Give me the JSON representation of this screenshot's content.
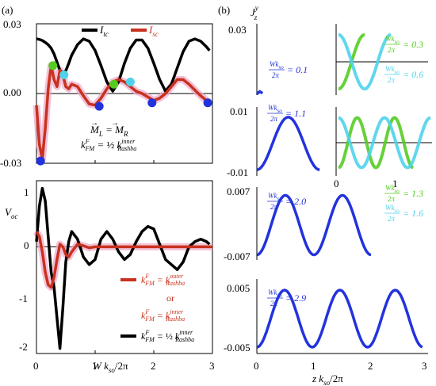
{
  "panel_labels": {
    "a": "(a)",
    "b": "(b)"
  },
  "colors": {
    "itc": "#000000",
    "isc": "#c8321e",
    "blue": "#2233dd",
    "green": "#55cc22",
    "cyan": "#4fd3ec",
    "pink": "#f0a6c8"
  },
  "chart_data": [
    {
      "id": "a-top",
      "type": "line",
      "xlim": [
        0,
        3
      ],
      "ylim": [
        -0.03,
        0.03
      ],
      "xticks": [
        0,
        1,
        2,
        3
      ],
      "yticks": [
        "0.03",
        "0.00",
        "-0.03"
      ],
      "legend": [
        {
          "name": "I_tc",
          "sym": "I",
          "sub": "tc",
          "color": "#000000"
        },
        {
          "name": "I_sc",
          "sym": "I",
          "sub": "sc",
          "color": "#c8321e"
        }
      ],
      "annotations": [
        "M_L = M_R",
        "k^F_FM = 1/2 k^inner_Rashba"
      ],
      "series": [
        {
          "name": "I_tc",
          "color": "#000000",
          "x": [
            0.0,
            0.05,
            0.1,
            0.15,
            0.2,
            0.25,
            0.3,
            0.35,
            0.4,
            0.45,
            0.5,
            0.55,
            0.6,
            0.7,
            0.8,
            0.9,
            1.0,
            1.1,
            1.2,
            1.3,
            1.4,
            1.5,
            1.6,
            1.7,
            1.8,
            1.9,
            2.0,
            2.1,
            2.2,
            2.3,
            2.4,
            2.5,
            2.6,
            2.7,
            2.8,
            2.9,
            2.95
          ],
          "y": [
            0.0235,
            0.0233,
            0.0228,
            0.022,
            0.021,
            0.0195,
            0.017,
            0.0135,
            0.01,
            0.009,
            0.0098,
            0.013,
            0.0165,
            0.021,
            0.0235,
            0.0225,
            0.0185,
            0.012,
            0.005,
            0.001,
            0.005,
            0.013,
            0.0195,
            0.023,
            0.023,
            0.0195,
            0.013,
            0.006,
            0.001,
            0.004,
            0.011,
            0.018,
            0.0225,
            0.0235,
            0.0225,
            0.02,
            0.0185
          ]
        },
        {
          "name": "I_sc",
          "color": "#c8321e",
          "x": [
            0.0,
            0.05,
            0.1,
            0.15,
            0.2,
            0.25,
            0.3,
            0.35,
            0.4,
            0.45,
            0.5,
            0.55,
            0.6,
            0.7,
            0.8,
            0.9,
            1.0,
            1.1,
            1.2,
            1.3,
            1.4,
            1.5,
            1.6,
            1.7,
            1.8,
            1.9,
            2.0,
            2.1,
            2.2,
            2.3,
            2.4,
            2.5,
            2.6,
            2.7,
            2.8,
            2.9,
            2.95
          ],
          "y": [
            -0.005,
            -0.022,
            -0.028,
            -0.015,
            0.002,
            0.012,
            0.006,
            0.003,
            0.01,
            0.008,
            0.003,
            0.002,
            0.004,
            0.003,
            -0.001,
            -0.0045,
            -0.005,
            -0.002,
            0.002,
            0.005,
            0.006,
            0.005,
            0.003,
            0.001,
            0.0,
            -0.0015,
            -0.003,
            -0.002,
            0.0,
            0.003,
            0.006,
            0.006,
            0.004,
            0.0015,
            -0.001,
            -0.003,
            -0.004
          ]
        }
      ],
      "markers": [
        {
          "x": 0.07,
          "y": -0.029,
          "color": "#2233dd"
        },
        {
          "x": 0.28,
          "y": 0.012,
          "color": "#55cc22"
        },
        {
          "x": 0.47,
          "y": 0.008,
          "color": "#4fd3ec"
        },
        {
          "x": 1.07,
          "y": -0.0055,
          "color": "#2233dd"
        },
        {
          "x": 1.32,
          "y": 0.004,
          "color": "#55cc22"
        },
        {
          "x": 1.6,
          "y": 0.005,
          "color": "#4fd3ec"
        },
        {
          "x": 1.97,
          "y": -0.004,
          "color": "#2233dd"
        },
        {
          "x": 2.92,
          "y": -0.004,
          "color": "#2233dd"
        }
      ]
    },
    {
      "id": "a-bottom",
      "type": "line",
      "xlim": [
        0,
        3
      ],
      "ylim": [
        -2.1,
        1.3
      ],
      "xticks": [
        0,
        1,
        2,
        3
      ],
      "yticks": [
        "1",
        "0",
        "-1",
        "-2"
      ],
      "ylabel": "V_oc",
      "xlabel": "W k_so/2π",
      "legend": [
        {
          "label": "k^F_FM = k^outer_Rashba",
          "color": "#c8321e"
        },
        {
          "label": "or",
          "color": "#c8321e"
        },
        {
          "label": "k^F_FM = k^inner_Rashba",
          "color": "#c8321e"
        },
        {
          "label": "k^F_FM = 1/2 k^inner_Rashba",
          "color": "#000000"
        }
      ],
      "series": [
        {
          "name": "black",
          "color": "#000000",
          "x": [
            0.0,
            0.05,
            0.1,
            0.15,
            0.2,
            0.25,
            0.3,
            0.35,
            0.4,
            0.45,
            0.5,
            0.55,
            0.6,
            0.7,
            0.8,
            0.9,
            1.0,
            1.1,
            1.2,
            1.3,
            1.4,
            1.5,
            1.6,
            1.7,
            1.8,
            1.9,
            2.0,
            2.1,
            2.2,
            2.3,
            2.4,
            2.5,
            2.6,
            2.7,
            2.8,
            2.9,
            2.95
          ],
          "y": [
            0.1,
            0.8,
            1.15,
            0.9,
            0.2,
            -0.5,
            -0.8,
            -1.4,
            -2.0,
            -1.2,
            -0.3,
            0.1,
            0.3,
            0.15,
            -0.2,
            -0.35,
            -0.25,
            0.15,
            0.3,
            0.15,
            -0.1,
            -0.25,
            -0.15,
            0.1,
            0.3,
            0.4,
            0.35,
            0.05,
            -0.25,
            -0.35,
            -0.45,
            -0.3,
            0.0,
            0.1,
            0.15,
            0.1,
            0.05
          ]
        },
        {
          "name": "red",
          "color": "#c8321e",
          "x": [
            0.0,
            0.05,
            0.1,
            0.15,
            0.2,
            0.25,
            0.3,
            0.35,
            0.4,
            0.45,
            0.5,
            0.55,
            0.6,
            0.7,
            0.8,
            0.9,
            1.0,
            1.2,
            1.5,
            2.0,
            2.5,
            3.0
          ],
          "y": [
            0.3,
            0.2,
            -0.1,
            -0.5,
            -0.75,
            -0.8,
            -0.6,
            -0.25,
            0.05,
            0.0,
            -0.15,
            -0.2,
            -0.1,
            0.05,
            0.02,
            -0.02,
            0.0,
            0.0,
            0.0,
            0.0,
            0.0,
            0.0
          ]
        }
      ]
    },
    {
      "id": "b-1",
      "type": "line",
      "ylabel": "J^y_z",
      "yticks": [
        "0.03"
      ],
      "ylim": [
        0,
        0.03
      ],
      "xlim": [
        0,
        3
      ],
      "annotation": "W k_so/2π = 0.1",
      "series": [
        {
          "name": "0.1",
          "color": "#2233dd",
          "x": [
            0.0,
            0.05,
            0.1
          ],
          "y": [
            0.0005,
            0.0015,
            0.0008
          ]
        }
      ]
    },
    {
      "id": "b-2",
      "type": "line",
      "yticks": [
        "0.01",
        "-0.01"
      ],
      "ylim": [
        -0.01,
        0.01
      ],
      "xlim": [
        0,
        3
      ],
      "annotation": "W k_so/2π = 1.1",
      "series": [
        {
          "name": "1.1",
          "color": "#2233dd",
          "period": 1.1,
          "xmax": 1.1,
          "amp": 0.0085,
          "phase": "sin"
        }
      ]
    },
    {
      "id": "b-3",
      "type": "line",
      "yticks": [
        "0.007",
        "-0.007"
      ],
      "ylim": [
        -0.007,
        0.007
      ],
      "xlim": [
        0,
        3
      ],
      "annotation": "W k_so/2π = 2.0",
      "series": [
        {
          "name": "2.0",
          "color": "#2233dd",
          "period": 1.0,
          "xmax": 2.0,
          "amp": 0.0064,
          "phase": "sin"
        }
      ]
    },
    {
      "id": "b-4",
      "type": "line",
      "yticks": [
        "0.005",
        "-0.005"
      ],
      "ylim": [
        -0.005,
        0.005
      ],
      "xlim": [
        0,
        3
      ],
      "xticks": [
        0,
        1,
        2,
        3
      ],
      "xlabel": "z k_so/2π",
      "annotation": "W k_so/2π = 2.9",
      "series": [
        {
          "name": "2.9",
          "color": "#2233dd",
          "period": 0.97,
          "xmax": 2.9,
          "amp": 0.0045,
          "phase": "sin"
        }
      ]
    },
    {
      "id": "b-inset-top",
      "type": "line",
      "annotations": [
        "W k_so/2π = 0.3",
        "W k_so/2π = 0.6"
      ],
      "series": [
        {
          "name": "0.3",
          "color": "#55cc22",
          "period": 0.6,
          "xmax": 0.3,
          "amp": 1,
          "phase": "sin"
        },
        {
          "name": "0.6",
          "color": "#4fd3ec",
          "period": 0.6,
          "xmax": 0.6,
          "amp": 1,
          "phase": "negsin"
        }
      ]
    },
    {
      "id": "b-inset-mid",
      "type": "line",
      "xticks": [
        0,
        1
      ],
      "annotations": [
        "W k_so/2π = 1.3",
        "W k_so/2π = 1.6"
      ],
      "series": [
        {
          "name": "1.3",
          "color": "#55cc22",
          "period": 0.65,
          "xmax": 1.3,
          "amp": 1,
          "phase": "sin"
        },
        {
          "name": "1.6",
          "color": "#4fd3ec",
          "period": 0.8,
          "xmax": 1.6,
          "amp": 1,
          "phase": "negsin"
        }
      ]
    }
  ]
}
